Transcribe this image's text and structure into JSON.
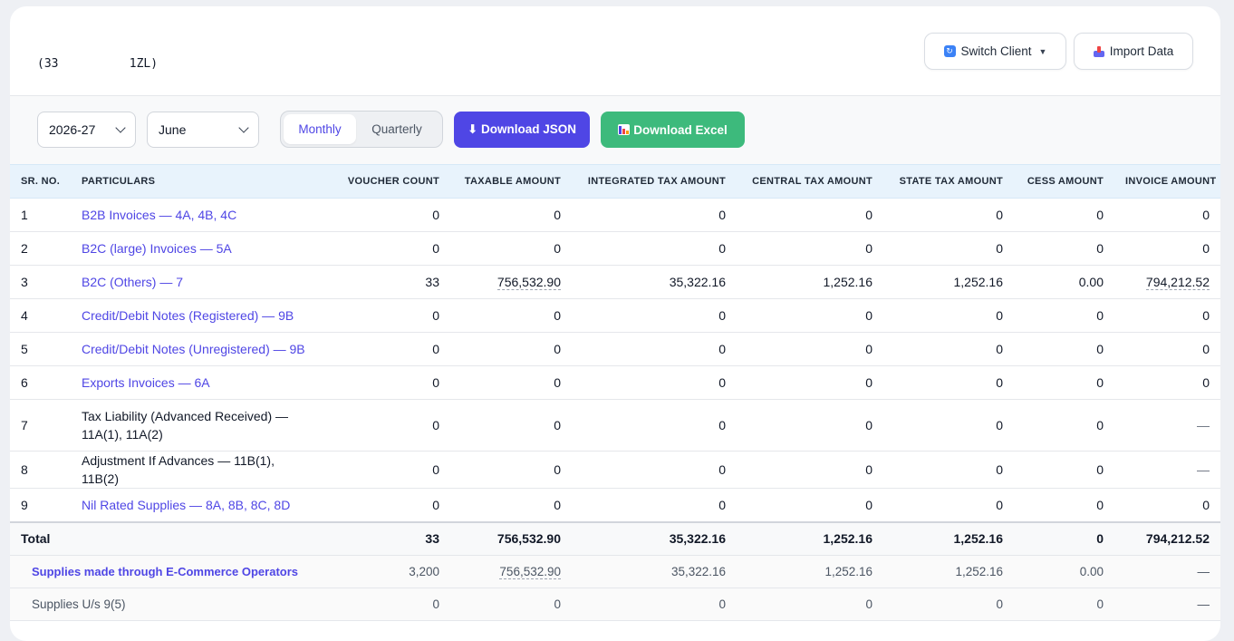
{
  "header": {
    "client_code": "(33          1ZL)",
    "switch_client_label": "Switch Client",
    "import_data_label": "Import Data"
  },
  "toolbar": {
    "year": "2026-27",
    "month": "June",
    "period_tabs": [
      "Monthly",
      "Quarterly"
    ],
    "active_period": "Monthly",
    "download_json_label": "⬇ Download JSON",
    "download_excel_label": "Download Excel"
  },
  "table": {
    "columns": [
      "SR. NO.",
      "PARTICULARS",
      "VOUCHER COUNT",
      "TAXABLE AMOUNT",
      "INTEGRATED TAX AMOUNT",
      "CENTRAL TAX AMOUNT",
      "STATE TAX AMOUNT",
      "CESS AMOUNT",
      "INVOICE AMOUNT"
    ],
    "rows": [
      {
        "sr": "1",
        "particulars": "B2B Invoices — 4A, 4B, 4C",
        "voucher": "0",
        "taxable": "0",
        "igst": "0",
        "cgst": "0",
        "sgst": "0",
        "cess": "0",
        "invoice": "0"
      },
      {
        "sr": "2",
        "particulars": "B2C (large) Invoices — 5A",
        "voucher": "0",
        "taxable": "0",
        "igst": "0",
        "cgst": "0",
        "sgst": "0",
        "cess": "0",
        "invoice": "0"
      },
      {
        "sr": "3",
        "particulars": "B2C (Others) — 7",
        "voucher": "33",
        "taxable": "756,532.90",
        "igst": "35,322.16",
        "cgst": "1,252.16",
        "sgst": "1,252.16",
        "cess": "0.00",
        "invoice": "794,212.52"
      },
      {
        "sr": "4",
        "particulars": "Credit/Debit Notes (Registered) — 9B",
        "voucher": "0",
        "taxable": "0",
        "igst": "0",
        "cgst": "0",
        "sgst": "0",
        "cess": "0",
        "invoice": "0"
      },
      {
        "sr": "5",
        "particulars": "Credit/Debit Notes (Unregistered) — 9B",
        "voucher": "0",
        "taxable": "0",
        "igst": "0",
        "cgst": "0",
        "sgst": "0",
        "cess": "0",
        "invoice": "0"
      },
      {
        "sr": "6",
        "particulars": "Exports Invoices — 6A",
        "voucher": "0",
        "taxable": "0",
        "igst": "0",
        "cgst": "0",
        "sgst": "0",
        "cess": "0",
        "invoice": "0"
      },
      {
        "sr": "7",
        "particulars": "Tax Liability (Advanced Received) — 11A(1), 11A(2)",
        "voucher": "0",
        "taxable": "0",
        "igst": "0",
        "cgst": "0",
        "sgst": "0",
        "cess": "0",
        "invoice": "—"
      },
      {
        "sr": "8",
        "particulars": "Adjustment If Advances — 11B(1), 11B(2)",
        "voucher": "0",
        "taxable": "0",
        "igst": "0",
        "cgst": "0",
        "sgst": "0",
        "cess": "0",
        "invoice": "—"
      },
      {
        "sr": "9",
        "particulars": "Nil Rated Supplies — 8A, 8B, 8C, 8D",
        "voucher": "0",
        "taxable": "0",
        "igst": "0",
        "cgst": "0",
        "sgst": "0",
        "cess": "0",
        "invoice": "0"
      }
    ],
    "total": {
      "label": "Total",
      "voucher": "33",
      "taxable": "756,532.90",
      "igst": "35,322.16",
      "cgst": "1,252.16",
      "sgst": "1,252.16",
      "cess": "0",
      "invoice": "794,212.52"
    },
    "ecommerce": {
      "label": "Supplies made through E-Commerce Operators",
      "voucher": "3,200",
      "taxable": "756,532.90",
      "igst": "35,322.16",
      "cgst": "1,252.16",
      "sgst": "1,252.16",
      "cess": "0.00",
      "invoice": "—"
    },
    "supplies_95": {
      "label": "Supplies U/s 9(5)",
      "voucher": "0",
      "taxable": "0",
      "igst": "0",
      "cgst": "0",
      "sgst": "0",
      "cess": "0",
      "invoice": "—"
    }
  },
  "colors": {
    "primary": "#4f46e5",
    "excel_green": "#3dba7c",
    "header_bg": "#e8f3fc"
  }
}
